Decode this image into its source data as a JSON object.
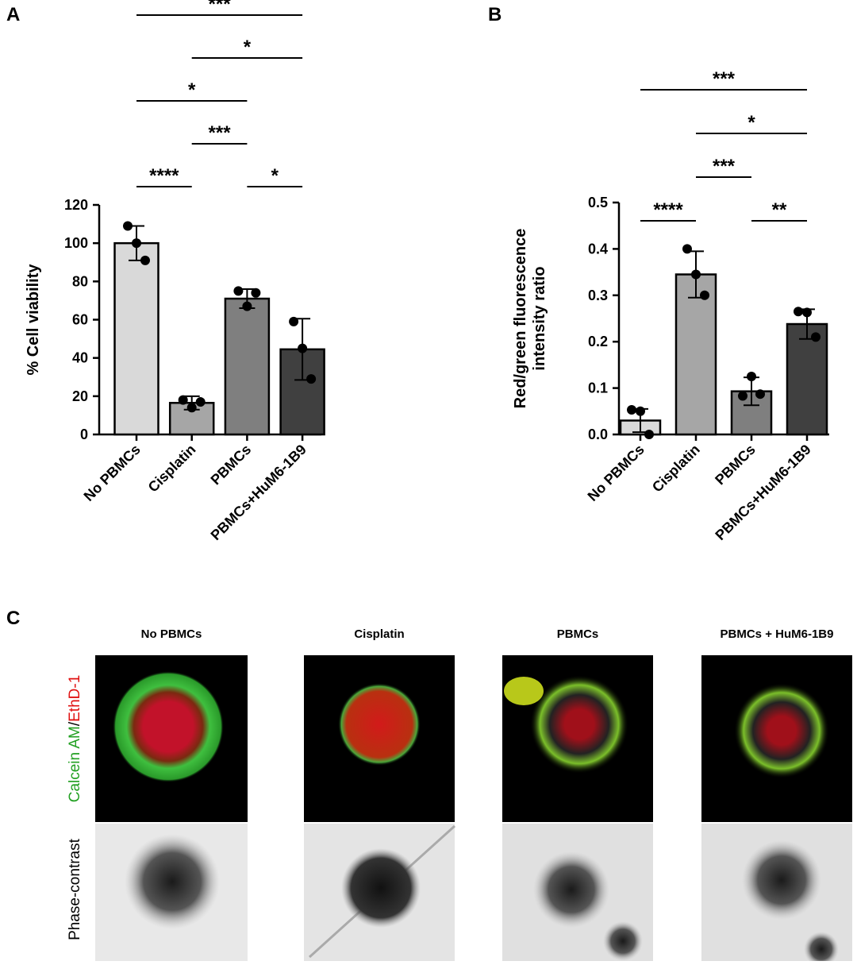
{
  "chart_data": [
    {
      "type": "bar",
      "panel": "A",
      "ylabel": [
        "% Cell viability"
      ],
      "categories": [
        "No PBMCs",
        "Cisplatin",
        "PBMCs",
        "PBMCs+HuM6-1B9"
      ],
      "values": [
        100,
        16.5,
        71,
        44.5
      ],
      "errors": [
        9,
        3.5,
        5,
        16
      ],
      "points": [
        [
          109,
          100,
          91
        ],
        [
          18,
          14,
          17
        ],
        [
          75,
          67,
          74
        ],
        [
          59,
          45,
          29
        ]
      ],
      "colors": [
        "#d9d9d9",
        "#a6a6a6",
        "#7f7f7f",
        "#404040"
      ],
      "ylim": [
        0,
        120
      ],
      "yticks": [
        0,
        20,
        40,
        60,
        80,
        100,
        120
      ],
      "significance": [
        [
          [
            0,
            1
          ],
          "****"
        ],
        [
          [
            2,
            3
          ],
          "*"
        ],
        [
          [
            1,
            2
          ],
          "***"
        ],
        [
          [
            0,
            2
          ],
          "*"
        ],
        [
          [
            1,
            3
          ],
          "*"
        ],
        [
          [
            0,
            3
          ],
          "***"
        ]
      ]
    },
    {
      "type": "bar",
      "panel": "B",
      "ylabel": [
        "Red/green fluorescence",
        "intensity ratio"
      ],
      "categories": [
        "No PBMCs",
        "Cisplatin",
        "PBMCs",
        "PBMCs+HuM6-1B9"
      ],
      "values": [
        0.03,
        0.345,
        0.093,
        0.238
      ],
      "errors": [
        0.025,
        0.05,
        0.03,
        0.032
      ],
      "points": [
        [
          0.053,
          0.05,
          0.0
        ],
        [
          0.4,
          0.345,
          0.3
        ],
        [
          0.083,
          0.125,
          0.087
        ],
        [
          0.265,
          0.263,
          0.21
        ]
      ],
      "colors": [
        "#d9d9d9",
        "#a6a6a6",
        "#7f7f7f",
        "#404040"
      ],
      "ylim": [
        0,
        0.5
      ],
      "yticks": [
        {
          "value": 0,
          "label": "0.0"
        },
        0.1,
        0.2,
        0.3,
        0.4,
        0.5
      ],
      "significance": [
        [
          [
            0,
            1
          ],
          "****"
        ],
        [
          [
            2,
            3
          ],
          "**"
        ],
        [
          [
            1,
            2
          ],
          "***"
        ],
        [
          [
            1,
            3
          ],
          "*"
        ],
        [
          [
            0,
            3
          ],
          "***"
        ]
      ]
    }
  ],
  "panel_c": {
    "panel": "C",
    "columns": [
      "No PBMCs",
      "Cisplatin",
      "PBMCs",
      "PBMCs + HuM6-1B9"
    ],
    "fluorescence_label": {
      "calcein": "Calcein AM",
      "separator": "/",
      "ethd": "EthD-1"
    },
    "phase_label": "Phase-contrast"
  }
}
